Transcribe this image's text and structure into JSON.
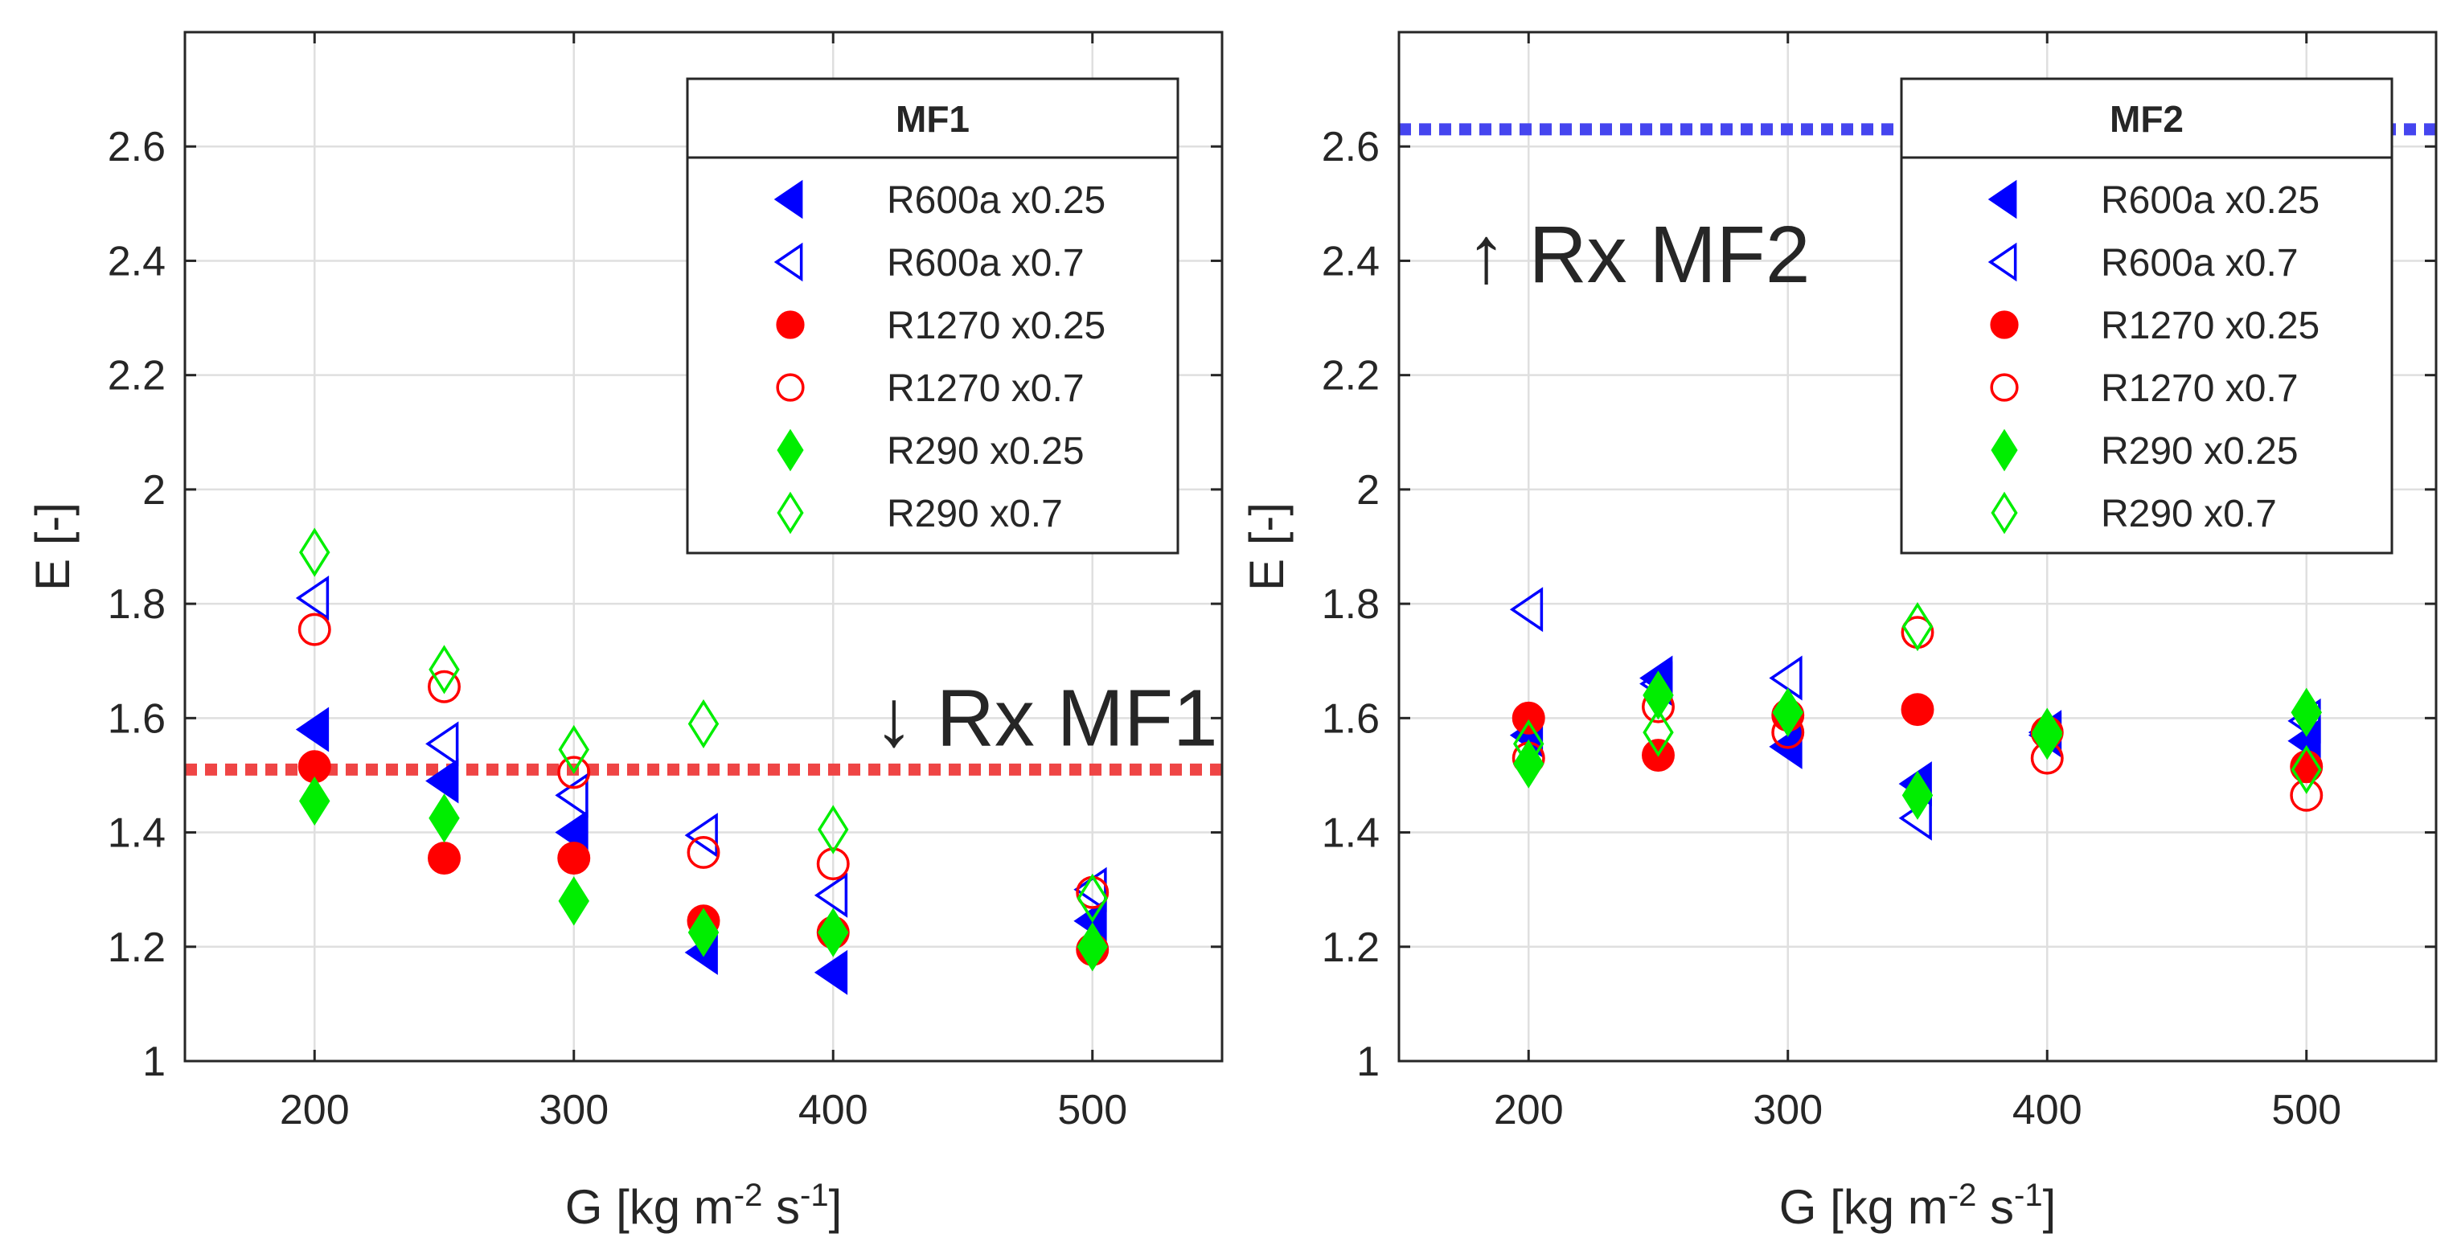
{
  "chart_data": [
    {
      "type": "scatter",
      "panel": "left",
      "title": "",
      "xlabel": "G [kg m-2 s-1]",
      "ylabel": "E [-]",
      "xlim": [
        150,
        550
      ],
      "ylim": [
        1,
        2.8
      ],
      "xticks": [
        200,
        300,
        400,
        500
      ],
      "yticks": [
        1,
        1.2,
        1.4,
        1.6,
        1.8,
        2,
        2.2,
        2.4,
        2.6
      ],
      "xtick_labels": [
        "200",
        "300",
        "400",
        "500"
      ],
      "ytick_labels": [
        "1",
        "1.2",
        "1.4",
        "1.6",
        "1.8",
        "2",
        "2.2",
        "2.4",
        "2.6"
      ],
      "grid": true,
      "legend": {
        "title": "MF1",
        "location": "top-right",
        "entries": [
          "R600a x0.25",
          "R600a x0.7",
          "R1270 x0.25",
          "R1270 x0.7",
          "R290 x0.25",
          "R290 x0.7"
        ]
      },
      "reference_line": {
        "label": "Rx MF1",
        "y": 1.51,
        "color": "#ef4545",
        "style": "dotted"
      },
      "annotation": {
        "text": "↓ Rx MF1",
        "anchor_x": 425,
        "anchor_y": 1.51
      },
      "series": [
        {
          "name": "R600a x0.25",
          "marker": "triangle-left",
          "filled": true,
          "color": "#0000ff",
          "x": [
            200,
            250,
            300,
            350,
            400,
            500
          ],
          "y": [
            1.58,
            1.49,
            1.4,
            1.19,
            1.155,
            1.245
          ]
        },
        {
          "name": "R600a x0.7",
          "marker": "triangle-left",
          "filled": false,
          "color": "#0000ff",
          "x": [
            200,
            250,
            300,
            350,
            400,
            500
          ],
          "y": [
            1.81,
            1.555,
            1.465,
            1.395,
            1.29,
            1.3
          ]
        },
        {
          "name": "R1270 x0.25",
          "marker": "circle",
          "filled": true,
          "color": "#ff0000",
          "x": [
            200,
            250,
            300,
            350,
            400,
            500
          ],
          "y": [
            1.515,
            1.355,
            1.355,
            1.245,
            1.225,
            1.195
          ]
        },
        {
          "name": "R1270 x0.7",
          "marker": "circle",
          "filled": false,
          "color": "#ff0000",
          "x": [
            200,
            250,
            300,
            350,
            400,
            500
          ],
          "y": [
            1.755,
            1.655,
            1.505,
            1.365,
            1.345,
            1.295
          ]
        },
        {
          "name": "R290 x0.25",
          "marker": "diamond",
          "filled": true,
          "color": "#00ee00",
          "x": [
            200,
            250,
            300,
            350,
            400,
            500
          ],
          "y": [
            1.455,
            1.425,
            1.28,
            1.225,
            1.225,
            1.2
          ]
        },
        {
          "name": "R290 x0.7",
          "marker": "diamond",
          "filled": false,
          "color": "#00ee00",
          "x": [
            200,
            250,
            300,
            350,
            400,
            500
          ],
          "y": [
            1.89,
            1.685,
            1.545,
            1.59,
            1.405,
            1.285
          ]
        }
      ]
    },
    {
      "type": "scatter",
      "panel": "right",
      "title": "",
      "xlabel": "G [kg m-2 s-1]",
      "ylabel": "E [-]",
      "xlim": [
        150,
        550
      ],
      "ylim": [
        1,
        2.8
      ],
      "xticks": [
        200,
        300,
        400,
        500
      ],
      "yticks": [
        1,
        1.2,
        1.4,
        1.6,
        1.8,
        2,
        2.2,
        2.4,
        2.6
      ],
      "xtick_labels": [
        "200",
        "300",
        "400",
        "500"
      ],
      "ytick_labels": [
        "1",
        "1.2",
        "1.4",
        "1.6",
        "1.8",
        "2",
        "2.2",
        "2.4",
        "2.6"
      ],
      "grid": true,
      "legend": {
        "title": "MF2",
        "location": "top-right",
        "entries": [
          "R600a x0.25",
          "R600a x0.7",
          "R1270 x0.25",
          "R1270 x0.7",
          "R290 x0.25",
          "R290 x0.7"
        ]
      },
      "reference_line": {
        "label": "Rx MF2",
        "y": 2.63,
        "color": "#4545ef",
        "style": "dotted"
      },
      "annotation": {
        "text": "↑ Rx MF2",
        "anchor_x": 193,
        "anchor_y": 2.63
      },
      "series": [
        {
          "name": "R600a x0.25",
          "marker": "triangle-left",
          "filled": true,
          "color": "#0000ff",
          "x": [
            200,
            250,
            300,
            350,
            400,
            500
          ],
          "y": [
            1.57,
            1.67,
            1.55,
            1.485,
            1.57,
            1.56
          ]
        },
        {
          "name": "R600a x0.7",
          "marker": "triangle-left",
          "filled": false,
          "color": "#0000ff",
          "x": [
            200,
            250,
            300,
            350,
            400,
            500
          ],
          "y": [
            1.79,
            1.66,
            1.67,
            1.425,
            1.575,
            1.595
          ]
        },
        {
          "name": "R1270 x0.25",
          "marker": "circle",
          "filled": true,
          "color": "#ff0000",
          "x": [
            200,
            250,
            300,
            350,
            400,
            500
          ],
          "y": [
            1.6,
            1.535,
            1.605,
            1.615,
            1.575,
            1.515
          ]
        },
        {
          "name": "R1270 x0.7",
          "marker": "circle",
          "filled": false,
          "color": "#ff0000",
          "x": [
            200,
            250,
            300,
            350,
            400,
            500
          ],
          "y": [
            1.53,
            1.62,
            1.575,
            1.75,
            1.53,
            1.465
          ]
        },
        {
          "name": "R290 x0.25",
          "marker": "diamond",
          "filled": true,
          "color": "#00ee00",
          "x": [
            200,
            250,
            300,
            350,
            400,
            500
          ],
          "y": [
            1.52,
            1.64,
            1.61,
            1.465,
            1.575,
            1.61
          ]
        },
        {
          "name": "R290 x0.7",
          "marker": "diamond",
          "filled": false,
          "color": "#00ee00",
          "x": [
            200,
            250,
            300,
            350,
            400,
            500
          ],
          "y": [
            1.555,
            1.575,
            1.61,
            1.76,
            1.57,
            1.51
          ]
        }
      ]
    }
  ]
}
